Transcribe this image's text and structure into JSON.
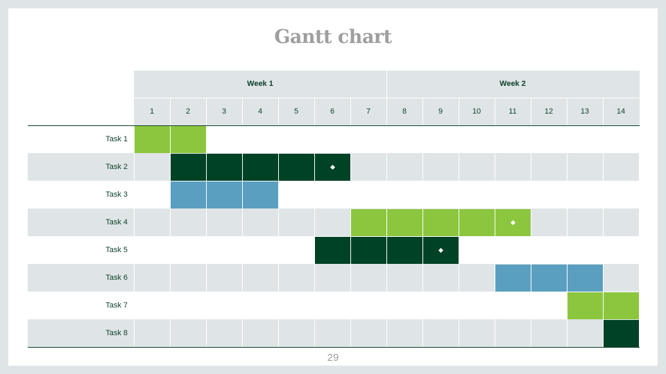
{
  "title": "Gantt chart",
  "page_number": "29",
  "colors": {
    "light_green": "#8cc63f",
    "dark_green": "#004225",
    "blue": "#5a9fc0",
    "stripe": "#dfe5e6",
    "text": "#0c3d2a"
  },
  "weeks": [
    {
      "label": "Week 1",
      "days": [
        1,
        2,
        3,
        4,
        5,
        6,
        7
      ]
    },
    {
      "label": "Week 2",
      "days": [
        8,
        9,
        10,
        11,
        12,
        13,
        14
      ]
    }
  ],
  "days": [
    "1",
    "2",
    "3",
    "4",
    "5",
    "6",
    "7",
    "8",
    "9",
    "10",
    "11",
    "12",
    "13",
    "14"
  ],
  "tasks": [
    {
      "label": "Task 1",
      "start": 1,
      "end": 2,
      "color": "light_green",
      "milestone": null
    },
    {
      "label": "Task 2",
      "start": 2,
      "end": 6,
      "color": "dark_green",
      "milestone": 6
    },
    {
      "label": "Task 3",
      "start": 2,
      "end": 4,
      "color": "blue",
      "milestone": null
    },
    {
      "label": "Task 4",
      "start": 7,
      "end": 11,
      "color": "light_green",
      "milestone": 11
    },
    {
      "label": "Task 5",
      "start": 6,
      "end": 9,
      "color": "dark_green",
      "milestone": 9
    },
    {
      "label": "Task 6",
      "start": 11,
      "end": 13,
      "color": "blue",
      "milestone": null
    },
    {
      "label": "Task 7",
      "start": 13,
      "end": 14,
      "color": "light_green",
      "milestone": null
    },
    {
      "label": "Task 8",
      "start": 14,
      "end": 14,
      "color": "dark_green",
      "milestone": null
    }
  ]
}
